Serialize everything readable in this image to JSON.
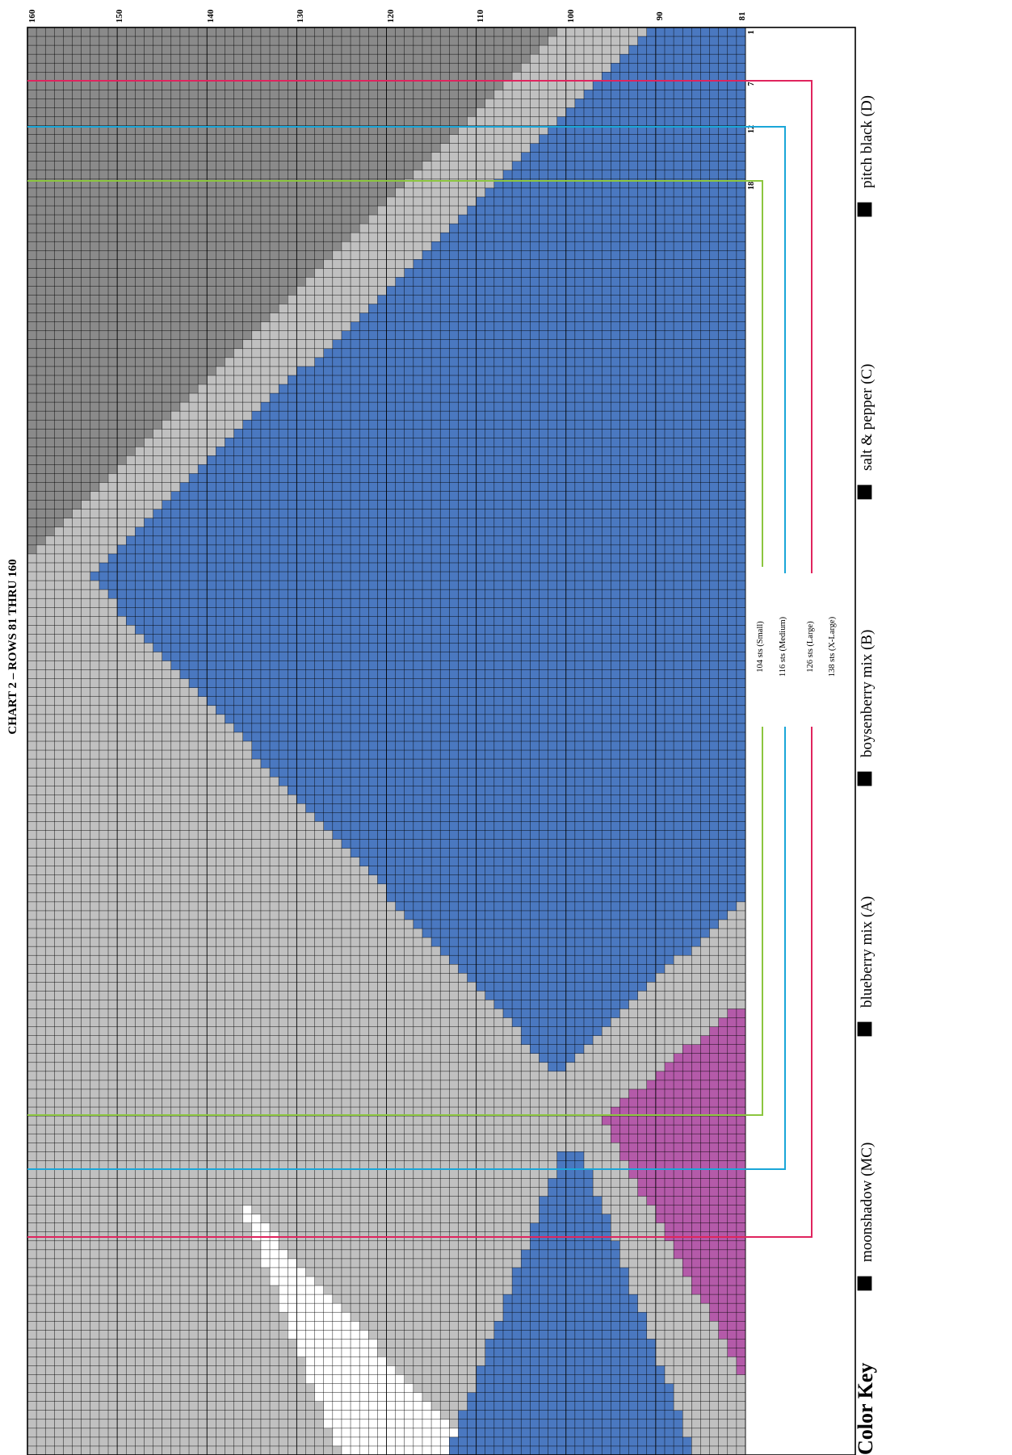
{
  "title": "CHART 2 – ROWS 81 THRU 160",
  "row_numbers": [
    "160",
    "150",
    "140",
    "130",
    "120",
    "110",
    "100",
    "90",
    "81"
  ],
  "stitch_markers": [
    "1",
    "7",
    "12",
    "18"
  ],
  "size_labels": [
    "104 sts (Small)",
    "116 sts (Medium)",
    "126 sts (Large)",
    "138 sts (X-Large)"
  ],
  "colors": {
    "MC": "#c0c0c0",
    "A": "#4a78c0",
    "B": "#b45aa9",
    "C": "#8a8a8a",
    "D": "#ffffff",
    "small": "#8cc63f",
    "medium": "#1aa6d8",
    "large": "#e0245e"
  },
  "color_key": {
    "heading": "Color Key",
    "items": [
      {
        "code": "MC",
        "label": "moonshadow (MC)"
      },
      {
        "code": "A",
        "label": "blueberry mix (A)"
      },
      {
        "code": "B",
        "label": "boysenberry mix (B)"
      },
      {
        "code": "C",
        "label": "salt & pepper (C)"
      },
      {
        "code": "D",
        "label": "pitch black (D)"
      }
    ]
  }
}
